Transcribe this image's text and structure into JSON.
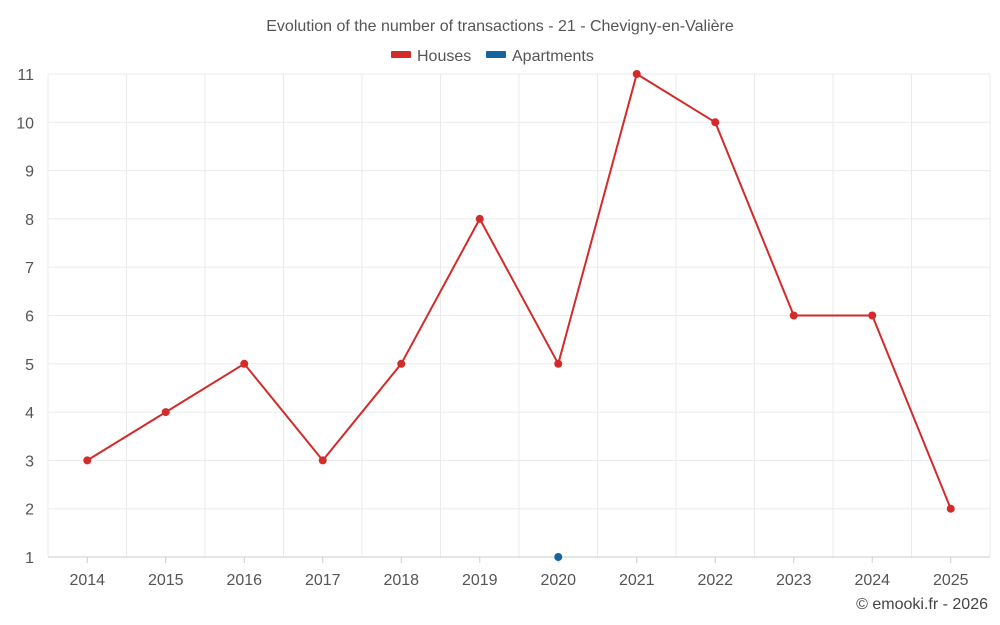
{
  "chart_data": {
    "type": "line",
    "title": "Evolution of the number of transactions - 21 - Chevigny-en-Valière",
    "xlabel": "",
    "ylabel": "",
    "categories": [
      "2014",
      "2015",
      "2016",
      "2017",
      "2018",
      "2019",
      "2020",
      "2021",
      "2022",
      "2023",
      "2024",
      "2025"
    ],
    "ylim": [
      1,
      11
    ],
    "yticks": [
      1,
      2,
      3,
      4,
      5,
      6,
      7,
      8,
      9,
      10,
      11
    ],
    "grid": true,
    "legend_position": "top-center",
    "series": [
      {
        "name": "Houses",
        "color": "#d32a2a",
        "values": [
          3,
          4,
          5,
          3,
          5,
          8,
          5,
          11,
          10,
          6,
          6,
          2
        ]
      },
      {
        "name": "Apartments",
        "color": "#1565a0",
        "values": [
          null,
          null,
          null,
          null,
          null,
          null,
          1,
          null,
          null,
          null,
          null,
          null
        ]
      }
    ]
  },
  "credit": "© emooki.fr - 2026"
}
